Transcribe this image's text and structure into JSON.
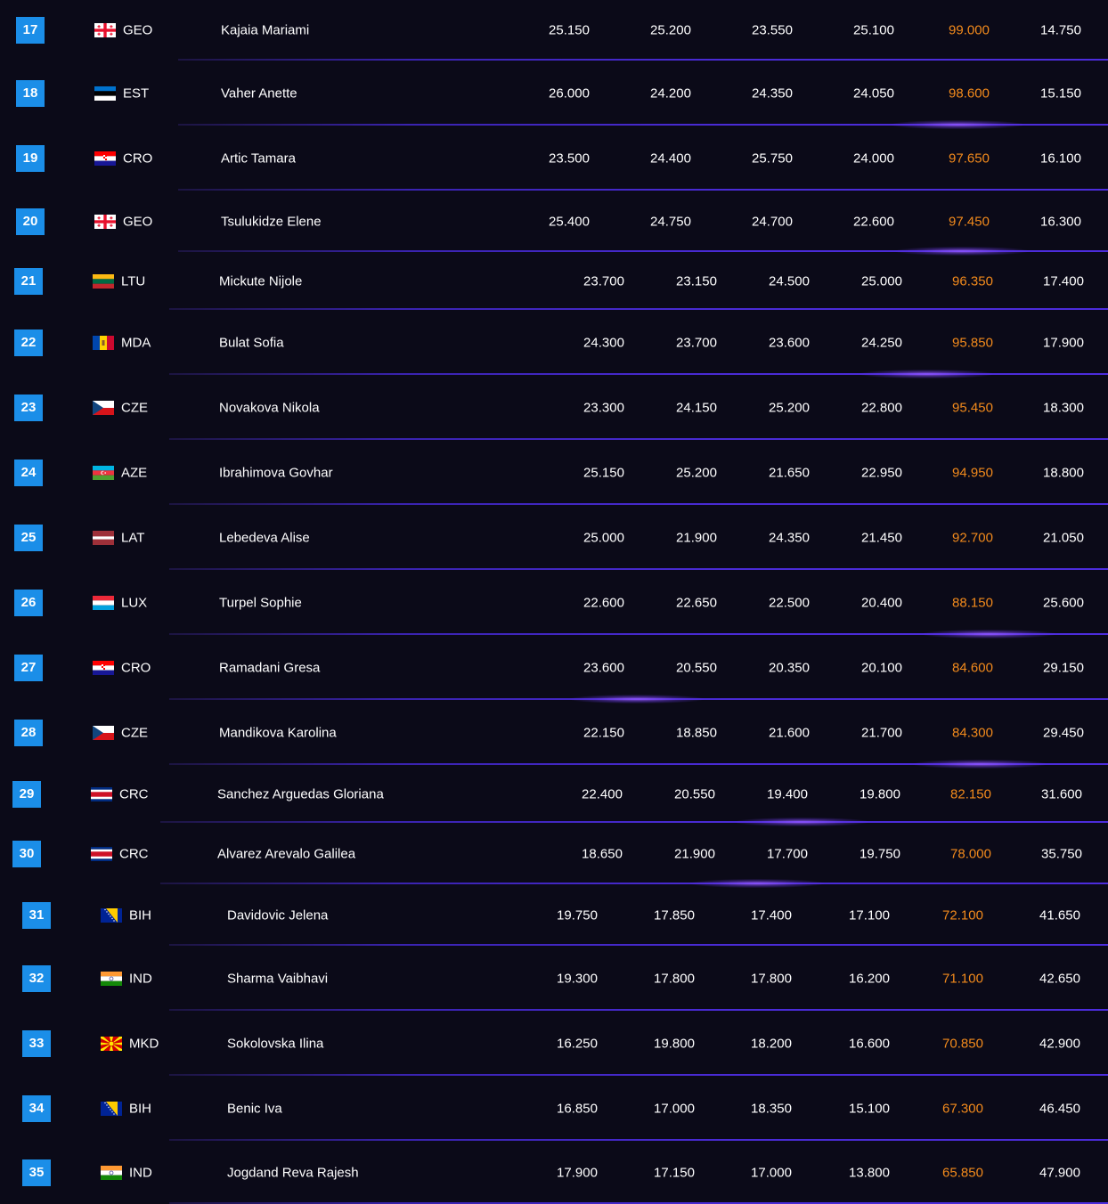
{
  "table": {
    "rows": [
      {
        "rank": "17",
        "flag": "geo",
        "country": "GEO",
        "name": "Kajaia Mariami",
        "s1": "25.150",
        "s2": "25.200",
        "s3": "23.550",
        "s4": "25.100",
        "total": "99.000",
        "gap": "14.750"
      },
      {
        "rank": "18",
        "flag": "est",
        "country": "EST",
        "name": "Vaher Anette",
        "s1": "26.000",
        "s2": "24.200",
        "s3": "24.350",
        "s4": "24.050",
        "total": "98.600",
        "gap": "15.150"
      },
      {
        "rank": "19",
        "flag": "cro",
        "country": "CRO",
        "name": "Artic Tamara",
        "s1": "23.500",
        "s2": "24.400",
        "s3": "25.750",
        "s4": "24.000",
        "total": "97.650",
        "gap": "16.100"
      },
      {
        "rank": "20",
        "flag": "geo",
        "country": "GEO",
        "name": "Tsulukidze Elene",
        "s1": "25.400",
        "s2": "24.750",
        "s3": "24.700",
        "s4": "22.600",
        "total": "97.450",
        "gap": "16.300"
      },
      {
        "rank": "21",
        "flag": "ltu",
        "country": "LTU",
        "name": "Mickute Nijole",
        "s1": "23.700",
        "s2": "23.150",
        "s3": "24.500",
        "s4": "25.000",
        "total": "96.350",
        "gap": "17.400"
      },
      {
        "rank": "22",
        "flag": "mda",
        "country": "MDA",
        "name": "Bulat Sofia",
        "s1": "24.300",
        "s2": "23.700",
        "s3": "23.600",
        "s4": "24.250",
        "total": "95.850",
        "gap": "17.900"
      },
      {
        "rank": "23",
        "flag": "cze",
        "country": "CZE",
        "name": "Novakova Nikola",
        "s1": "23.300",
        "s2": "24.150",
        "s3": "25.200",
        "s4": "22.800",
        "total": "95.450",
        "gap": "18.300"
      },
      {
        "rank": "24",
        "flag": "aze",
        "country": "AZE",
        "name": "Ibrahimova Govhar",
        "s1": "25.150",
        "s2": "25.200",
        "s3": "21.650",
        "s4": "22.950",
        "total": "94.950",
        "gap": "18.800"
      },
      {
        "rank": "25",
        "flag": "lat",
        "country": "LAT",
        "name": "Lebedeva Alise",
        "s1": "25.000",
        "s2": "21.900",
        "s3": "24.350",
        "s4": "21.450",
        "total": "92.700",
        "gap": "21.050"
      },
      {
        "rank": "26",
        "flag": "lux",
        "country": "LUX",
        "name": "Turpel Sophie",
        "s1": "22.600",
        "s2": "22.650",
        "s3": "22.500",
        "s4": "20.400",
        "total": "88.150",
        "gap": "25.600"
      },
      {
        "rank": "27",
        "flag": "cro",
        "country": "CRO",
        "name": "Ramadani Gresa",
        "s1": "23.600",
        "s2": "20.550",
        "s3": "20.350",
        "s4": "20.100",
        "total": "84.600",
        "gap": "29.150"
      },
      {
        "rank": "28",
        "flag": "cze",
        "country": "CZE",
        "name": "Mandikova Karolina",
        "s1": "22.150",
        "s2": "18.850",
        "s3": "21.600",
        "s4": "21.700",
        "total": "84.300",
        "gap": "29.450"
      },
      {
        "rank": "29",
        "flag": "crc",
        "country": "CRC",
        "name": "Sanchez Arguedas Gloriana",
        "s1": "22.400",
        "s2": "20.550",
        "s3": "19.400",
        "s4": "19.800",
        "total": "82.150",
        "gap": "31.600"
      },
      {
        "rank": "30",
        "flag": "crc",
        "country": "CRC",
        "name": "Alvarez Arevalo Galilea",
        "s1": "18.650",
        "s2": "21.900",
        "s3": "17.700",
        "s4": "19.750",
        "total": "78.000",
        "gap": "35.750"
      },
      {
        "rank": "31",
        "flag": "bih",
        "country": "BIH",
        "name": "Davidovic Jelena",
        "s1": "19.750",
        "s2": "17.850",
        "s3": "17.400",
        "s4": "17.100",
        "total": "72.100",
        "gap": "41.650"
      },
      {
        "rank": "32",
        "flag": "ind",
        "country": "IND",
        "name": "Sharma Vaibhavi",
        "s1": "19.300",
        "s2": "17.800",
        "s3": "17.800",
        "s4": "16.200",
        "total": "71.100",
        "gap": "42.650"
      },
      {
        "rank": "33",
        "flag": "mkd",
        "country": "MKD",
        "name": "Sokolovska Ilina",
        "s1": "16.250",
        "s2": "19.800",
        "s3": "18.200",
        "s4": "16.600",
        "total": "70.850",
        "gap": "42.900"
      },
      {
        "rank": "34",
        "flag": "bih",
        "country": "BIH",
        "name": "Benic Iva",
        "s1": "16.850",
        "s2": "17.000",
        "s3": "18.350",
        "s4": "15.100",
        "total": "67.300",
        "gap": "46.450"
      },
      {
        "rank": "35",
        "flag": "ind",
        "country": "IND",
        "name": "Jogdand Reva Rajesh",
        "s1": "17.900",
        "s2": "17.150",
        "s3": "17.000",
        "s4": "13.800",
        "total": "65.850",
        "gap": "47.900"
      }
    ]
  },
  "colors": {
    "background": "#0b0a18",
    "rank_badge": "#1b8ee8",
    "total_text": "#f28a1c",
    "divider": "#4a2bd6"
  }
}
